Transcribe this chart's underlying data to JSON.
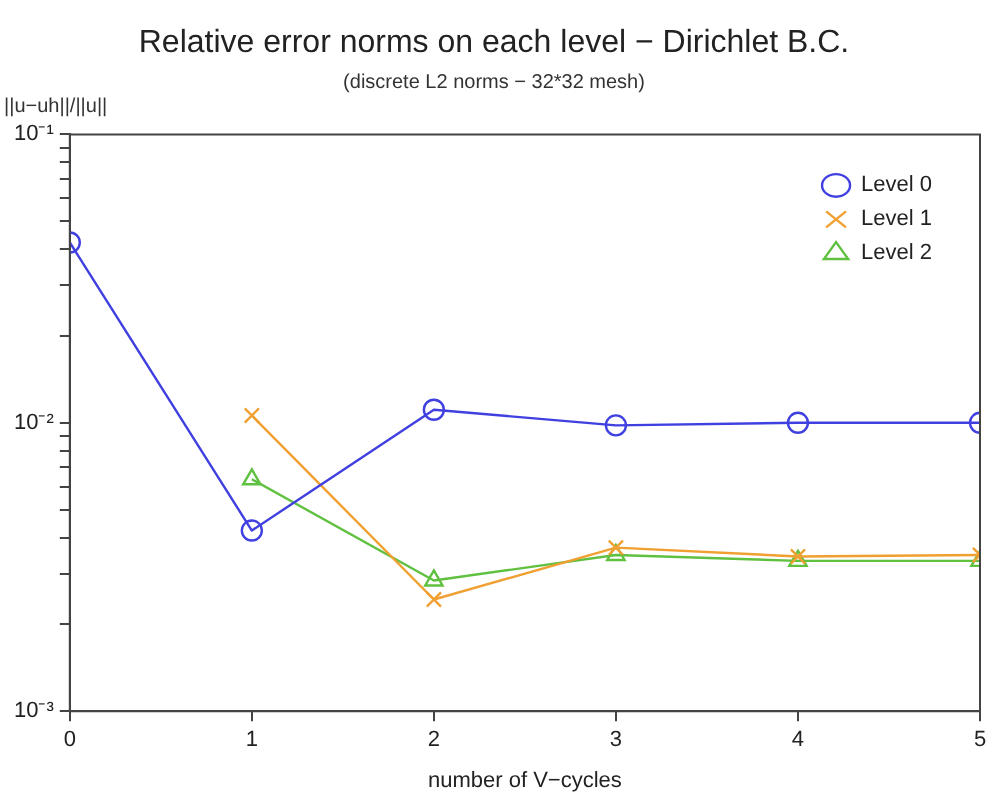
{
  "chart_data": {
    "type": "line",
    "title": "Relative error norms on each level − Dirichlet B.C.",
    "subtitle": "(discrete L2 norms − 32*32 mesh)",
    "xlabel": "number of V−cycles",
    "ylabel": "||u−uh||/||u||",
    "log": "y",
    "grid": false,
    "legend": "top right",
    "line_style": "solid",
    "x": [
      0,
      1,
      2,
      3,
      4,
      5
    ],
    "xlim": [
      0,
      5
    ],
    "xticks": [
      0,
      1,
      2,
      3,
      4,
      5
    ],
    "ylim": [
      0.001,
      0.1
    ],
    "yticks": [
      {
        "value": 0.001,
        "label": "10⁻³"
      },
      {
        "value": 0.002,
        "label": null
      },
      {
        "value": 0.003,
        "label": null
      },
      {
        "value": 0.004,
        "label": null
      },
      {
        "value": 0.005,
        "label": null
      },
      {
        "value": 0.006,
        "label": null
      },
      {
        "value": 0.007,
        "label": null
      },
      {
        "value": 0.008,
        "label": null
      },
      {
        "value": 0.009,
        "label": null
      },
      {
        "value": 0.01,
        "label": "10⁻²"
      },
      {
        "value": 0.02,
        "label": null
      },
      {
        "value": 0.03,
        "label": null
      },
      {
        "value": 0.04,
        "label": null
      },
      {
        "value": 0.05,
        "label": null
      },
      {
        "value": 0.06,
        "label": null
      },
      {
        "value": 0.07,
        "label": null
      },
      {
        "value": 0.08,
        "label": null
      },
      {
        "value": 0.09,
        "label": null
      },
      {
        "value": 0.1,
        "label": "10⁻¹"
      }
    ],
    "series": [
      {
        "name": "Level 0",
        "color": "#4040e0",
        "marker": "circle",
        "values": [
          0.0422,
          0.00423,
          0.0111,
          0.0098,
          0.01,
          0.01
        ]
      },
      {
        "name": "Level 1",
        "color": "#f0a030",
        "marker": "cross",
        "values": [
          null,
          0.0106,
          0.00244,
          0.00369,
          0.00344,
          0.00348
        ]
      },
      {
        "name": "Level 2",
        "color": "#60c040",
        "marker": "triangle",
        "values": [
          null,
          0.00637,
          0.00284,
          0.00348,
          0.00332,
          0.00332
        ]
      }
    ]
  }
}
